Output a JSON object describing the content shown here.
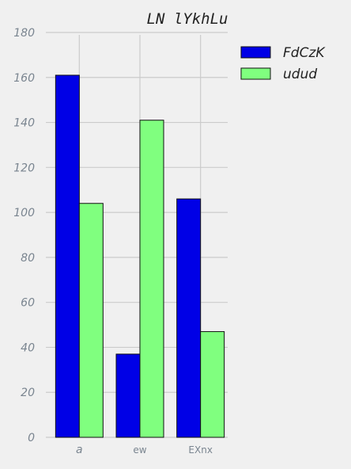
{
  "chart_data": {
    "type": "bar",
    "title": "LN lYkhLu",
    "categories": [
      "a",
      "ew",
      "EXnx"
    ],
    "series": [
      {
        "name": "FdCzK",
        "color": "#0000e6",
        "values": [
          161,
          37,
          106
        ]
      },
      {
        "name": "udud",
        "color": "#80ff7f",
        "values": [
          104,
          141,
          47
        ]
      }
    ],
    "ylim": [
      0,
      180
    ],
    "yticks": [
      "0",
      "20",
      "40",
      "60",
      "80",
      "100",
      "120",
      "140",
      "160",
      "180"
    ],
    "xlabel": "",
    "ylabel": "",
    "grid": true,
    "legend_position": "top-right"
  }
}
